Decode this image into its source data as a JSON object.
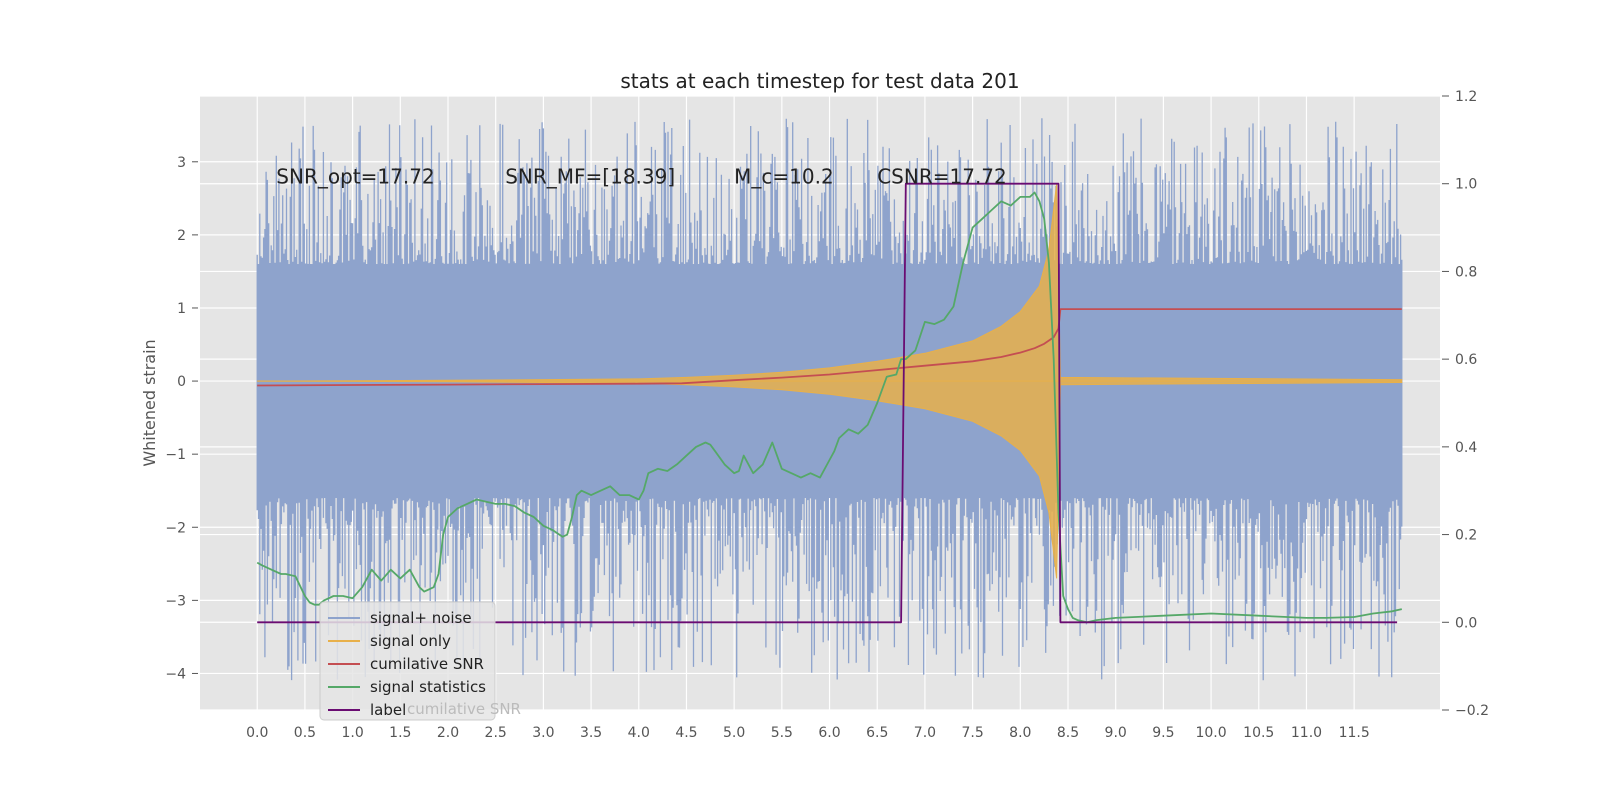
{
  "chart_data": {
    "type": "line",
    "title": "stats at each timestep for test data 201",
    "xlabel": "",
    "ylabel": "Whitened strain",
    "xlim": [
      -0.6,
      12.4
    ],
    "ylim": [
      -4.5,
      3.9
    ],
    "y2lim": [
      -0.2,
      1.2
    ],
    "xticks": [
      "0.0",
      "0.5",
      "1.0",
      "1.5",
      "2.0",
      "2.5",
      "3.0",
      "3.5",
      "4.0",
      "4.5",
      "5.0",
      "5.5",
      "6.0",
      "6.5",
      "7.0",
      "7.5",
      "8.0",
      "8.5",
      "9.0",
      "9.5",
      "10.0",
      "10.5",
      "11.0",
      "11.5"
    ],
    "yticks": [
      "3",
      "2",
      "1",
      "0",
      "−1",
      "−2",
      "−3",
      "−4"
    ],
    "y2ticks": [
      "1.2",
      "1.0",
      "0.8",
      "0.6",
      "0.4",
      "0.2",
      "0.0",
      "−0.2"
    ],
    "grid": true,
    "legend_position": "lower-left",
    "annotations": [
      {
        "text": "SNR_opt=17.72",
        "x": 0.2,
        "y": 2.8
      },
      {
        "text": "SNR_MF=[18.39]",
        "x": 2.6,
        "y": 2.8
      },
      {
        "text": "M_c=10.2",
        "x": 5.0,
        "y": 2.8
      },
      {
        "text": "CSNR=17.72",
        "x": 6.5,
        "y": 2.8
      }
    ],
    "series": [
      {
        "name": "signal+ noise",
        "axis": "left",
        "color": "#8ea3cc",
        "kind": "noise",
        "x_range": [
          0.0,
          12.0
        ],
        "envelope_upper": 1.6,
        "envelope_lower": -1.6,
        "spike_max": 3.6,
        "spike_min": -4.1
      },
      {
        "name": "signal only",
        "axis": "left",
        "color": "#e8b04a",
        "kind": "chirp",
        "x": [
          0.0,
          1.0,
          2.0,
          3.0,
          4.0,
          4.5,
          5.0,
          5.5,
          6.0,
          6.5,
          7.0,
          7.5,
          7.8,
          8.0,
          8.2,
          8.3,
          8.38,
          8.42,
          12.0
        ],
        "amplitude": [
          0.0,
          0.005,
          0.01,
          0.02,
          0.03,
          0.05,
          0.08,
          0.12,
          0.18,
          0.27,
          0.38,
          0.55,
          0.75,
          0.95,
          1.3,
          1.8,
          2.7,
          0.05,
          0.02
        ]
      },
      {
        "name": "cumilative SNR",
        "axis": "right",
        "color": "#c44e52",
        "x": [
          0.0,
          1.0,
          2.0,
          3.0,
          4.0,
          4.45,
          5.0,
          5.5,
          6.0,
          6.5,
          7.0,
          7.5,
          7.8,
          8.0,
          8.15,
          8.25,
          8.35,
          8.4,
          8.42,
          11.5,
          12.0
        ],
        "y": [
          0.54,
          0.541,
          0.542,
          0.543,
          0.544,
          0.545,
          0.552,
          0.558,
          0.565,
          0.575,
          0.585,
          0.595,
          0.605,
          0.615,
          0.625,
          0.635,
          0.65,
          0.67,
          0.714,
          0.714,
          0.714
        ]
      },
      {
        "name": "signal statistics",
        "axis": "right",
        "color": "#55a868",
        "x": [
          0.0,
          0.05,
          0.15,
          0.25,
          0.3,
          0.4,
          0.5,
          0.55,
          0.6,
          0.65,
          0.7,
          0.8,
          0.9,
          1.0,
          1.1,
          1.2,
          1.3,
          1.4,
          1.5,
          1.6,
          1.7,
          1.75,
          1.8,
          1.85,
          1.9,
          1.95,
          2.0,
          2.1,
          2.2,
          2.3,
          2.4,
          2.5,
          2.6,
          2.7,
          2.8,
          2.9,
          3.0,
          3.1,
          3.2,
          3.25,
          3.3,
          3.35,
          3.4,
          3.5,
          3.6,
          3.7,
          3.8,
          3.9,
          4.0,
          4.05,
          4.1,
          4.2,
          4.3,
          4.4,
          4.5,
          4.6,
          4.7,
          4.75,
          4.8,
          4.9,
          5.0,
          5.05,
          5.1,
          5.2,
          5.3,
          5.4,
          5.5,
          5.6,
          5.7,
          5.8,
          5.9,
          6.0,
          6.05,
          6.1,
          6.2,
          6.3,
          6.4,
          6.5,
          6.6,
          6.7,
          6.75,
          6.8,
          6.9,
          7.0,
          7.1,
          7.2,
          7.3,
          7.4,
          7.5,
          7.6,
          7.7,
          7.8,
          7.9,
          8.0,
          8.1,
          8.15,
          8.2,
          8.25,
          8.3,
          8.35,
          8.4,
          8.45,
          8.5,
          8.55,
          8.6,
          8.7,
          8.8,
          9.0,
          9.5,
          10.0,
          10.5,
          11.0,
          11.2,
          11.5,
          11.7,
          11.9,
          12.0
        ],
        "y": [
          0.136,
          0.13,
          0.12,
          0.11,
          0.11,
          0.105,
          0.06,
          0.045,
          0.04,
          0.04,
          0.05,
          0.06,
          0.06,
          0.055,
          0.08,
          0.12,
          0.095,
          0.12,
          0.1,
          0.12,
          0.08,
          0.07,
          0.075,
          0.08,
          0.11,
          0.2,
          0.24,
          0.26,
          0.27,
          0.28,
          0.275,
          0.27,
          0.27,
          0.265,
          0.25,
          0.24,
          0.22,
          0.21,
          0.195,
          0.2,
          0.24,
          0.29,
          0.3,
          0.29,
          0.3,
          0.31,
          0.29,
          0.29,
          0.28,
          0.3,
          0.34,
          0.35,
          0.345,
          0.36,
          0.38,
          0.4,
          0.41,
          0.405,
          0.39,
          0.36,
          0.34,
          0.345,
          0.38,
          0.34,
          0.36,
          0.41,
          0.35,
          0.34,
          0.33,
          0.34,
          0.33,
          0.37,
          0.39,
          0.42,
          0.44,
          0.43,
          0.45,
          0.5,
          0.56,
          0.565,
          0.6,
          0.6,
          0.62,
          0.685,
          0.68,
          0.69,
          0.72,
          0.82,
          0.9,
          0.92,
          0.94,
          0.96,
          0.95,
          0.97,
          0.97,
          0.98,
          0.96,
          0.92,
          0.82,
          0.6,
          0.25,
          0.06,
          0.03,
          0.01,
          0.005,
          0.0,
          0.005,
          0.01,
          0.015,
          0.02,
          0.015,
          0.01,
          0.01,
          0.012,
          0.02,
          0.025,
          0.03
        ],
        "x_truncate": 12.0
      },
      {
        "name": "label",
        "axis": "right",
        "color": "#6a0c72",
        "x": [
          0.0,
          6.75,
          6.8,
          8.4,
          8.42,
          11.95
        ],
        "y": [
          0.0,
          0.0,
          1.0,
          1.0,
          0.0,
          0.0
        ]
      }
    ],
    "legend_ghost_text": "cumilative SNR"
  }
}
